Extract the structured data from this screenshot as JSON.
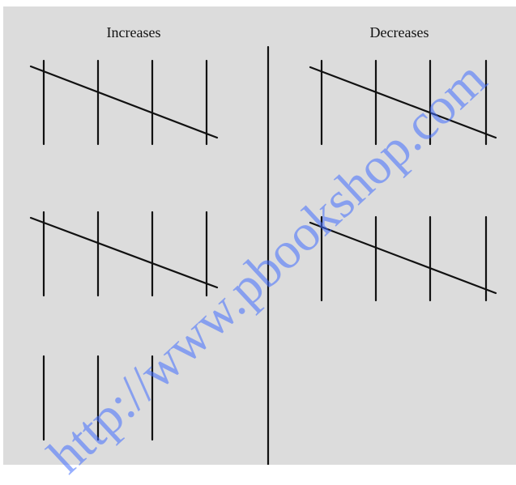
{
  "headings": {
    "left": "Increases",
    "right": "Decreases"
  },
  "watermark": {
    "text": "http://www.pbookshop.com",
    "color": "#426eff"
  },
  "colors": {
    "background": "#dcdcdc",
    "stroke": "#111111"
  }
}
